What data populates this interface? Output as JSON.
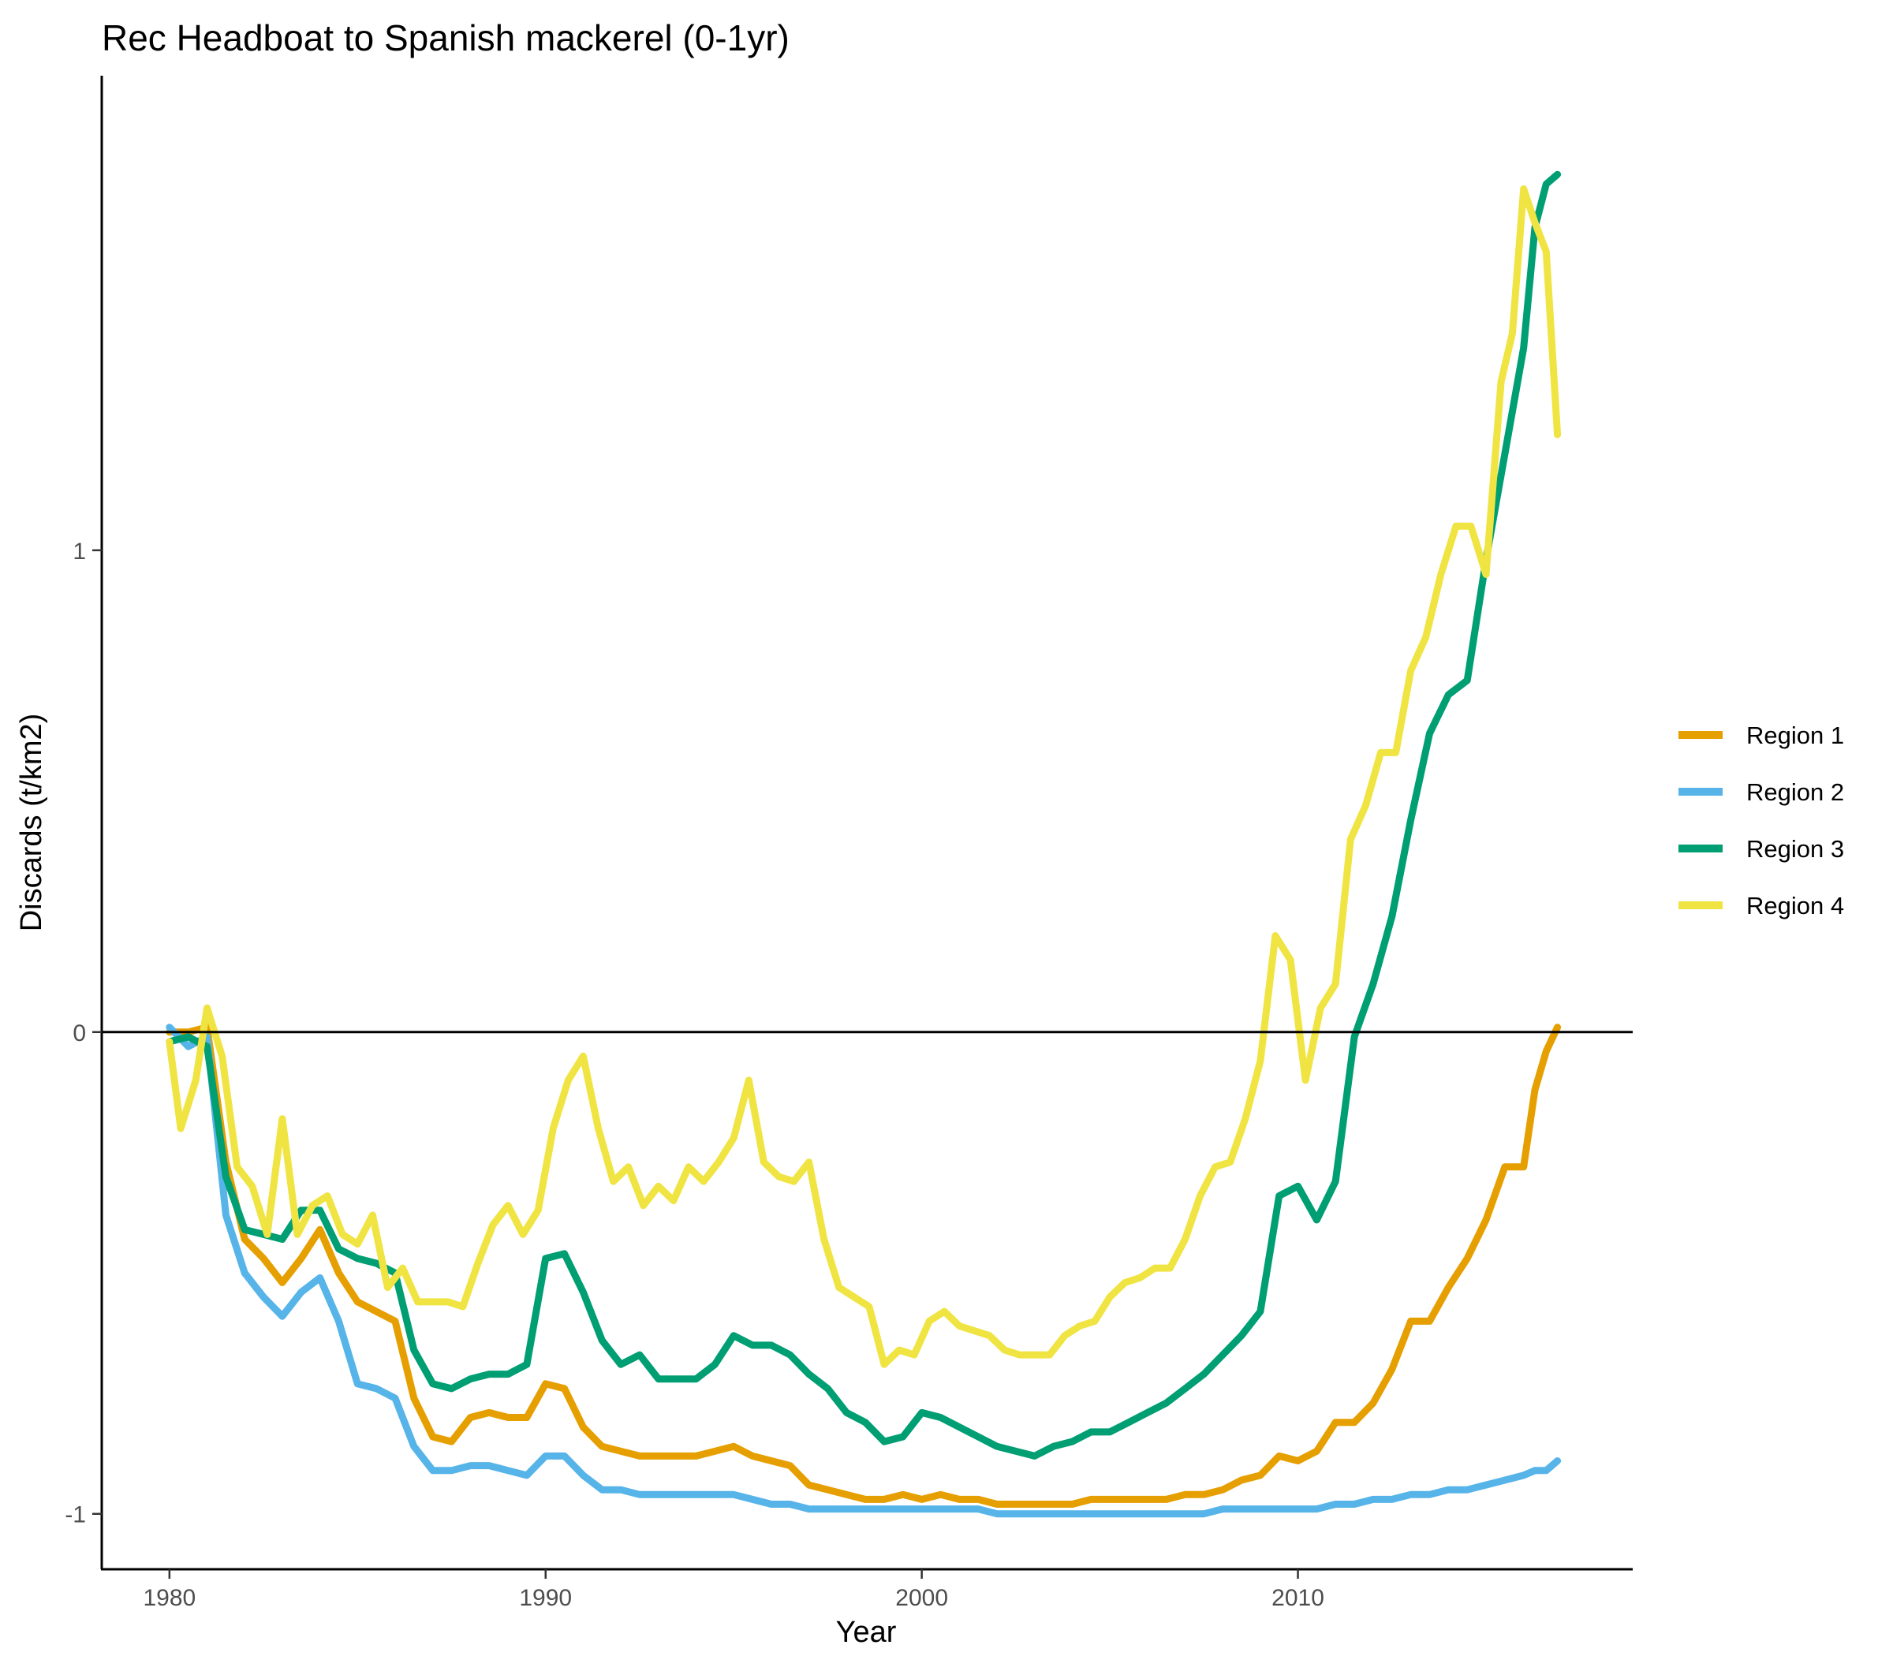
{
  "chart_data": {
    "type": "line",
    "title": "Rec Headboat to Spanish mackerel (0-1yr)",
    "xlabel": "Year",
    "ylabel": "Discards (t/km2)",
    "xlim": [
      1978.2,
      2018.9
    ],
    "ylim": [
      -1.115,
      1.985
    ],
    "x_ticks": [
      1980,
      1990,
      2000,
      2010
    ],
    "x_tick_labels": [
      "1980",
      "1990",
      "2000",
      "2010"
    ],
    "y_ticks": [
      -1,
      0,
      1
    ],
    "y_tick_labels": [
      "-1",
      "0",
      "1"
    ],
    "reference_line_y": 0,
    "grid": false,
    "legend_position": "right",
    "colors": {
      "Region 1": "#E69F00",
      "Region 2": "#56B4E9",
      "Region 3": "#009E73",
      "Region 4": "#F0E442"
    },
    "series": [
      {
        "name": "Region 1",
        "color": "#E69F00",
        "x": [
          1980,
          1980.5,
          1981,
          1981.5,
          1982,
          1982.5,
          1983,
          1983.5,
          1984,
          1984.5,
          1985,
          1985.5,
          1986,
          1986.5,
          1987,
          1987.5,
          1988,
          1988.5,
          1989,
          1989.5,
          1990,
          1990.5,
          1991,
          1991.5,
          1992,
          1992.5,
          1993,
          1993.5,
          1994,
          1994.5,
          1995,
          1995.5,
          1996,
          1996.5,
          1997,
          1997.5,
          1998,
          1998.5,
          1999,
          1999.5,
          2000,
          2000.5,
          2001,
          2001.5,
          2002,
          2002.5,
          2003,
          2003.5,
          2004,
          2004.5,
          2005,
          2005.5,
          2006,
          2006.5,
          2007,
          2007.5,
          2008,
          2008.5,
          2009,
          2009.5,
          2010,
          2010.5,
          2011,
          2011.5,
          2012,
          2012.5,
          2013,
          2013.5,
          2014,
          2014.5,
          2015,
          2015.5,
          2016,
          2016.3,
          2016.6,
          2016.9
        ],
        "values": [
          0,
          0,
          0.01,
          -0.27,
          -0.43,
          -0.47,
          -0.52,
          -0.47,
          -0.41,
          -0.5,
          -0.56,
          -0.58,
          -0.6,
          -0.76,
          -0.84,
          -0.85,
          -0.8,
          -0.79,
          -0.8,
          -0.8,
          -0.73,
          -0.74,
          -0.82,
          -0.86,
          -0.87,
          -0.88,
          -0.88,
          -0.88,
          -0.88,
          -0.87,
          -0.86,
          -0.88,
          -0.89,
          -0.9,
          -0.94,
          -0.95,
          -0.96,
          -0.97,
          -0.97,
          -0.96,
          -0.97,
          -0.96,
          -0.97,
          -0.97,
          -0.98,
          -0.98,
          -0.98,
          -0.98,
          -0.98,
          -0.97,
          -0.97,
          -0.97,
          -0.97,
          -0.97,
          -0.96,
          -0.96,
          -0.95,
          -0.93,
          -0.92,
          -0.88,
          -0.89,
          -0.87,
          -0.81,
          -0.81,
          -0.77,
          -0.7,
          -0.6,
          -0.6,
          -0.53,
          -0.47,
          -0.39,
          -0.28,
          -0.28,
          -0.12,
          -0.04,
          0.01
        ]
      },
      {
        "name": "Region 2",
        "color": "#56B4E9",
        "x": [
          1980,
          1980.5,
          1981,
          1981.5,
          1982,
          1982.5,
          1983,
          1983.5,
          1984,
          1984.5,
          1985,
          1985.5,
          1986,
          1986.5,
          1987,
          1987.5,
          1988,
          1988.5,
          1989,
          1989.5,
          1990,
          1990.5,
          1991,
          1991.5,
          1992,
          1992.5,
          1993,
          1993.5,
          1994,
          1994.5,
          1995,
          1995.5,
          1996,
          1996.5,
          1997,
          1997.5,
          1998,
          1998.5,
          1999,
          1999.5,
          2000,
          2000.5,
          2001,
          2001.5,
          2002,
          2002.5,
          2003,
          2003.5,
          2004,
          2004.5,
          2005,
          2005.5,
          2006,
          2006.5,
          2007,
          2007.5,
          2008,
          2008.5,
          2009,
          2009.5,
          2010,
          2010.5,
          2011,
          2011.5,
          2012,
          2012.5,
          2013,
          2013.5,
          2014,
          2014.5,
          2015,
          2015.5,
          2016,
          2016.3,
          2016.6,
          2016.9
        ],
        "values": [
          0.01,
          -0.03,
          -0.01,
          -0.38,
          -0.5,
          -0.55,
          -0.59,
          -0.54,
          -0.51,
          -0.6,
          -0.73,
          -0.74,
          -0.76,
          -0.86,
          -0.91,
          -0.91,
          -0.9,
          -0.9,
          -0.91,
          -0.92,
          -0.88,
          -0.88,
          -0.92,
          -0.95,
          -0.95,
          -0.96,
          -0.96,
          -0.96,
          -0.96,
          -0.96,
          -0.96,
          -0.97,
          -0.98,
          -0.98,
          -0.99,
          -0.99,
          -0.99,
          -0.99,
          -0.99,
          -0.99,
          -0.99,
          -0.99,
          -0.99,
          -0.99,
          -1.0,
          -1.0,
          -1.0,
          -1.0,
          -1.0,
          -1.0,
          -1.0,
          -1.0,
          -1.0,
          -1.0,
          -1.0,
          -1.0,
          -0.99,
          -0.99,
          -0.99,
          -0.99,
          -0.99,
          -0.99,
          -0.98,
          -0.98,
          -0.97,
          -0.97,
          -0.96,
          -0.96,
          -0.95,
          -0.95,
          -0.94,
          -0.93,
          -0.92,
          -0.91,
          -0.91,
          -0.89
        ]
      },
      {
        "name": "Region 3",
        "color": "#009E73",
        "x": [
          1980,
          1980.5,
          1981,
          1981.5,
          1982,
          1982.5,
          1983,
          1983.5,
          1984,
          1984.5,
          1985,
          1985.5,
          1986,
          1986.5,
          1987,
          1987.5,
          1988,
          1988.5,
          1989,
          1989.5,
          1990,
          1990.5,
          1991,
          1991.5,
          1992,
          1992.5,
          1993,
          1993.5,
          1994,
          1994.5,
          1995,
          1995.5,
          1996,
          1996.5,
          1997,
          1997.5,
          1998,
          1998.5,
          1999,
          1999.5,
          2000,
          2000.5,
          2001,
          2001.5,
          2002,
          2002.5,
          2003,
          2003.5,
          2004,
          2004.5,
          2005,
          2005.5,
          2006,
          2006.5,
          2007,
          2007.5,
          2008,
          2008.5,
          2009,
          2009.5,
          2010,
          2010.5,
          2011,
          2011.5,
          2012,
          2012.5,
          2013,
          2013.5,
          2014,
          2014.5,
          2015,
          2015.5,
          2016,
          2016.3,
          2016.6,
          2016.9
        ],
        "values": [
          -0.02,
          -0.01,
          -0.03,
          -0.3,
          -0.41,
          -0.42,
          -0.43,
          -0.37,
          -0.37,
          -0.45,
          -0.47,
          -0.48,
          -0.5,
          -0.66,
          -0.73,
          -0.74,
          -0.72,
          -0.71,
          -0.71,
          -0.69,
          -0.47,
          -0.46,
          -0.54,
          -0.64,
          -0.69,
          -0.67,
          -0.72,
          -0.72,
          -0.72,
          -0.69,
          -0.63,
          -0.65,
          -0.65,
          -0.67,
          -0.71,
          -0.74,
          -0.79,
          -0.81,
          -0.85,
          -0.84,
          -0.79,
          -0.8,
          -0.82,
          -0.84,
          -0.86,
          -0.87,
          -0.88,
          -0.86,
          -0.85,
          -0.83,
          -0.83,
          -0.81,
          -0.79,
          -0.77,
          -0.74,
          -0.71,
          -0.67,
          -0.63,
          -0.58,
          -0.34,
          -0.32,
          -0.39,
          -0.31,
          -0.01,
          0.1,
          0.24,
          0.44,
          0.62,
          0.7,
          0.73,
          0.98,
          1.2,
          1.42,
          1.67,
          1.76,
          1.78
        ]
      },
      {
        "name": "Region 4",
        "color": "#F0E442",
        "x": [
          1980,
          1980.3,
          1980.7,
          1981,
          1981.4,
          1981.8,
          1982.2,
          1982.6,
          1983,
          1983.4,
          1983.8,
          1984.2,
          1984.6,
          1985,
          1985.4,
          1985.8,
          1986.2,
          1986.6,
          1987,
          1987.4,
          1987.8,
          1988.2,
          1988.6,
          1989,
          1989.4,
          1989.8,
          1990.2,
          1990.6,
          1991,
          1991.4,
          1991.8,
          1992.2,
          1992.6,
          1993,
          1993.4,
          1993.8,
          1994.2,
          1994.6,
          1995,
          1995.4,
          1995.8,
          1996.2,
          1996.6,
          1997,
          1997.4,
          1997.8,
          1998.2,
          1998.6,
          1999,
          1999.4,
          1999.8,
          2000.2,
          2000.6,
          2001,
          2001.4,
          2001.8,
          2002.2,
          2002.6,
          2003,
          2003.4,
          2003.8,
          2004.2,
          2004.6,
          2005,
          2005.4,
          2005.8,
          2006.2,
          2006.6,
          2007,
          2007.4,
          2007.8,
          2008.2,
          2008.6,
          2009,
          2009.4,
          2009.8,
          2010.2,
          2010.6,
          2011,
          2011.4,
          2011.8,
          2012.2,
          2012.6,
          2013,
          2013.4,
          2013.8,
          2014.2,
          2014.6,
          2015,
          2015.4,
          2015.7,
          2016,
          2016.3,
          2016.6,
          2016.9
        ],
        "values": [
          -0.02,
          -0.2,
          -0.1,
          0.05,
          -0.05,
          -0.28,
          -0.32,
          -0.42,
          -0.18,
          -0.42,
          -0.36,
          -0.34,
          -0.42,
          -0.44,
          -0.38,
          -0.53,
          -0.49,
          -0.56,
          -0.56,
          -0.56,
          -0.57,
          -0.48,
          -0.4,
          -0.36,
          -0.42,
          -0.37,
          -0.2,
          -0.1,
          -0.05,
          -0.2,
          -0.31,
          -0.28,
          -0.36,
          -0.32,
          -0.35,
          -0.28,
          -0.31,
          -0.27,
          -0.22,
          -0.1,
          -0.27,
          -0.3,
          -0.31,
          -0.27,
          -0.43,
          -0.53,
          -0.55,
          -0.57,
          -0.69,
          -0.66,
          -0.67,
          -0.6,
          -0.58,
          -0.61,
          -0.62,
          -0.63,
          -0.66,
          -0.67,
          -0.67,
          -0.67,
          -0.63,
          -0.61,
          -0.6,
          -0.55,
          -0.52,
          -0.51,
          -0.49,
          -0.49,
          -0.43,
          -0.34,
          -0.28,
          -0.27,
          -0.18,
          -0.06,
          0.2,
          0.15,
          -0.1,
          0.05,
          0.1,
          0.4,
          0.47,
          0.58,
          0.58,
          0.75,
          0.82,
          0.95,
          1.05,
          1.05,
          0.95,
          1.35,
          1.45,
          1.75,
          1.68,
          1.62,
          1.24
        ]
      }
    ]
  }
}
